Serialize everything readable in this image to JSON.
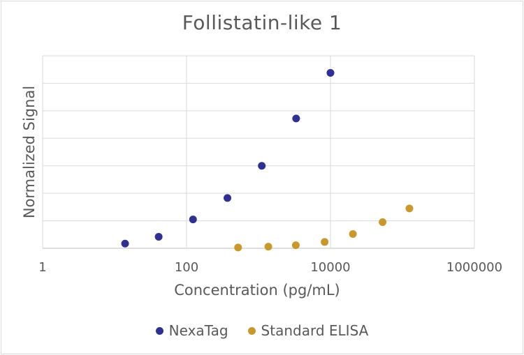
{
  "chart_data": {
    "type": "scatter",
    "title": "Follistatin-like 1",
    "xlabel": "Concentration (pg/mL)",
    "ylabel": "Normalized Signal",
    "x_scale": "log10",
    "xlim": [
      1,
      1000000
    ],
    "x_ticks": [
      "1",
      "100",
      "10000",
      "1000000"
    ],
    "ylim": [
      0,
      7
    ],
    "y_ticks_labeled": false,
    "grid": true,
    "legend_position": "bottom",
    "series": [
      {
        "name": "NexaTag",
        "color": "#2e3192",
        "points": [
          {
            "x": 14,
            "y": 0.17
          },
          {
            "x": 41,
            "y": 0.42
          },
          {
            "x": 123,
            "y": 1.05
          },
          {
            "x": 370,
            "y": 1.83
          },
          {
            "x": 1111,
            "y": 3.0
          },
          {
            "x": 3333,
            "y": 4.72
          },
          {
            "x": 10000,
            "y": 6.38
          }
        ]
      },
      {
        "name": "Standard ELISA",
        "color": "#c8982d",
        "points": [
          {
            "x": 520,
            "y": 0.03
          },
          {
            "x": 1370,
            "y": 0.06
          },
          {
            "x": 3300,
            "y": 0.11
          },
          {
            "x": 8300,
            "y": 0.23
          },
          {
            "x": 20500,
            "y": 0.52
          },
          {
            "x": 53000,
            "y": 0.95
          },
          {
            "x": 125000,
            "y": 1.45
          }
        ]
      }
    ]
  }
}
